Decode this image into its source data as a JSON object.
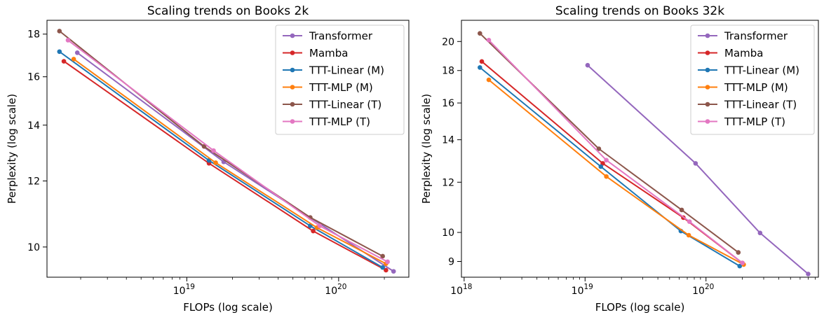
{
  "chart_data": [
    {
      "type": "line",
      "title": "Scaling trends on Books 2k",
      "xlabel": "FLOPs (log scale)",
      "ylabel": "Perplexity (log scale)",
      "x_scale": "log",
      "y_scale": "log",
      "xlim": [
        1.2e+18,
        2.9e+20
      ],
      "ylim": [
        9.2,
        18.7
      ],
      "x_major_ticks": [
        {
          "value": 1e+19,
          "base": "10",
          "exp": "19"
        },
        {
          "value": 1e+20,
          "base": "10",
          "exp": "20"
        }
      ],
      "y_ticks": [
        10,
        12,
        14,
        16,
        18
      ],
      "legend_position": "top-right",
      "grid": false,
      "series": [
        {
          "name": "Transformer",
          "color": "#9467bd",
          "points": [
            [
              1.9e+18,
              17.1
            ],
            [
              1.75e+19,
              12.65
            ],
            [
              2.3e+20,
              9.35
            ]
          ]
        },
        {
          "name": "Mamba",
          "color": "#d62728",
          "points": [
            [
              1.55e+18,
              16.7
            ],
            [
              1.4e+19,
              12.6
            ],
            [
              6.8e+19,
              10.45
            ],
            [
              2.05e+20,
              9.38
            ]
          ]
        },
        {
          "name": "TTT-Linear (M)",
          "color": "#1f77b4",
          "points": [
            [
              1.45e+18,
              17.15
            ],
            [
              1.4e+19,
              12.7
            ],
            [
              6.5e+19,
              10.6
            ],
            [
              1.95e+20,
              9.45
            ]
          ]
        },
        {
          "name": "TTT-MLP (M)",
          "color": "#ff7f0e",
          "points": [
            [
              1.8e+18,
              16.8
            ],
            [
              1.55e+19,
              12.62
            ],
            [
              7.2e+19,
              10.55
            ],
            [
              2.05e+20,
              9.55
            ]
          ]
        },
        {
          "name": "TTT-Linear (T)",
          "color": "#8c564b",
          "points": [
            [
              1.45e+18,
              18.15
            ],
            [
              1.3e+19,
              13.2
            ],
            [
              6.5e+19,
              10.85
            ],
            [
              1.95e+20,
              9.75
            ]
          ]
        },
        {
          "name": "TTT-MLP (T)",
          "color": "#e377c2",
          "points": [
            [
              1.65e+18,
              17.7
            ],
            [
              1.5e+19,
              13.05
            ],
            [
              7.5e+19,
              10.6
            ],
            [
              2.1e+20,
              9.6
            ]
          ]
        }
      ]
    },
    {
      "type": "line",
      "title": "Scaling trends on Books 32k",
      "xlabel": "FLOPs (log scale)",
      "ylabel": "Perplexity (log scale)",
      "x_scale": "log",
      "y_scale": "log",
      "xlim": [
        9.5e+17,
        8.5e+20
      ],
      "ylim": [
        8.5,
        21.6
      ],
      "x_major_ticks": [
        {
          "value": 1e+18,
          "base": "10",
          "exp": "18"
        },
        {
          "value": 1e+19,
          "base": "10",
          "exp": "19"
        },
        {
          "value": 1e+20,
          "base": "10",
          "exp": "20"
        }
      ],
      "y_ticks": [
        9,
        10,
        12,
        14,
        16,
        18,
        20
      ],
      "legend_position": "top-right",
      "grid": false,
      "series": [
        {
          "name": "Transformer",
          "color": "#9467bd",
          "points": [
            [
              1.05e+19,
              18.35
            ],
            [
              8.2e+19,
              12.85
            ],
            [
              2.8e+20,
              9.98
            ],
            [
              7e+20,
              8.6
            ]
          ]
        },
        {
          "name": "Mamba",
          "color": "#d62728",
          "points": [
            [
              1.4e+18,
              18.6
            ],
            [
              1.4e+19,
              12.85
            ],
            [
              6.5e+19,
              10.55
            ],
            [
              2e+20,
              8.95
            ]
          ]
        },
        {
          "name": "TTT-Linear (M)",
          "color": "#1f77b4",
          "points": [
            [
              1.35e+18,
              18.2
            ],
            [
              1.35e+19,
              12.7
            ],
            [
              6.2e+19,
              10.05
            ],
            [
              1.9e+20,
              8.85
            ]
          ]
        },
        {
          "name": "TTT-MLP (M)",
          "color": "#ff7f0e",
          "points": [
            [
              1.6e+18,
              17.4
            ],
            [
              1.5e+19,
              12.25
            ],
            [
              7.2e+19,
              9.9
            ],
            [
              2.05e+20,
              8.9
            ]
          ]
        },
        {
          "name": "TTT-Linear (T)",
          "color": "#8c564b",
          "points": [
            [
              1.35e+18,
              20.6
            ],
            [
              1.3e+19,
              13.55
            ],
            [
              6.3e+19,
              10.85
            ],
            [
              1.85e+20,
              9.3
            ]
          ]
        },
        {
          "name": "TTT-MLP (T)",
          "color": "#e377c2",
          "points": [
            [
              1.6e+18,
              20.1
            ],
            [
              1.5e+19,
              13.0
            ],
            [
              7.3e+19,
              10.4
            ],
            [
              2e+20,
              8.95
            ]
          ]
        }
      ]
    }
  ]
}
